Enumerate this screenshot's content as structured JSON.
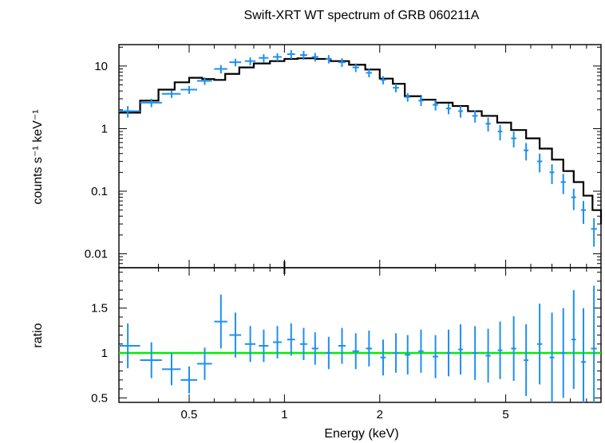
{
  "chart_data": [
    {
      "type": "scatter",
      "panel": "spectrum",
      "title": "Swift-XRT WT spectrum of GRB 060211A",
      "ylabel": "counts s⁻¹ keV⁻¹",
      "xscale": "log",
      "yscale": "log",
      "xlim": [
        0.3,
        10
      ],
      "ylim": [
        0.006,
        22
      ],
      "yticks": [
        0.01,
        0.1,
        1,
        10
      ],
      "ytick_labels": [
        "0.01",
        "0.1",
        "1",
        "10"
      ],
      "series": [
        {
          "role": "data",
          "color": "#1f8ff0",
          "x": [
            0.32,
            0.38,
            0.44,
            0.5,
            0.56,
            0.63,
            0.7,
            0.78,
            0.86,
            0.95,
            1.05,
            1.15,
            1.25,
            1.38,
            1.52,
            1.68,
            1.85,
            2.05,
            2.25,
            2.45,
            2.7,
            3.0,
            3.3,
            3.6,
            4.0,
            4.4,
            4.8,
            5.3,
            5.8,
            6.4,
            7.0,
            7.6,
            8.2,
            8.8,
            9.5
          ],
          "y": [
            1.9,
            2.6,
            3.6,
            4.2,
            5.8,
            9.0,
            11.5,
            12.0,
            13.5,
            14.0,
            15.5,
            15.0,
            14.0,
            13.0,
            11.5,
            9.5,
            7.8,
            6.0,
            4.5,
            3.2,
            2.8,
            2.4,
            2.1,
            1.9,
            1.6,
            1.2,
            0.9,
            0.7,
            0.45,
            0.3,
            0.2,
            0.14,
            0.08,
            0.05,
            0.025
          ],
          "xerr": [
            0.03,
            0.03,
            0.03,
            0.03,
            0.03,
            0.03,
            0.03,
            0.03,
            0.03,
            0.03,
            0.03,
            0.03,
            0.03,
            0.03,
            0.04,
            0.04,
            0.04,
            0.04,
            0.05,
            0.05,
            0.05,
            0.06,
            0.06,
            0.06,
            0.08,
            0.08,
            0.08,
            0.1,
            0.1,
            0.12,
            0.12,
            0.14,
            0.14,
            0.16,
            0.2
          ],
          "yerr": [
            0.4,
            0.4,
            0.5,
            0.6,
            0.8,
            1.4,
            1.6,
            1.7,
            2.0,
            2.0,
            2.5,
            2.4,
            2.2,
            2.0,
            1.8,
            1.5,
            1.2,
            0.9,
            0.7,
            0.5,
            0.5,
            0.45,
            0.4,
            0.4,
            0.35,
            0.3,
            0.25,
            0.2,
            0.14,
            0.1,
            0.07,
            0.05,
            0.03,
            0.02,
            0.012
          ]
        },
        {
          "role": "model",
          "color": "#000000",
          "x": [
            0.3,
            0.35,
            0.4,
            0.45,
            0.5,
            0.55,
            0.6,
            0.65,
            0.72,
            0.8,
            0.9,
            1.0,
            1.1,
            1.25,
            1.4,
            1.6,
            1.8,
            2.0,
            2.2,
            2.4,
            2.7,
            3.0,
            3.4,
            3.8,
            4.2,
            4.7,
            5.2,
            5.8,
            6.4,
            7.0,
            7.6,
            8.2,
            8.8,
            9.4,
            10.0
          ],
          "y": [
            1.8,
            2.8,
            4.2,
            5.5,
            6.5,
            6.2,
            6.0,
            7.5,
            9.5,
            11.0,
            12.0,
            13.0,
            13.3,
            13.0,
            12.0,
            10.5,
            8.8,
            6.3,
            5.2,
            3.3,
            2.9,
            2.6,
            2.3,
            1.9,
            1.6,
            1.25,
            0.95,
            0.7,
            0.48,
            0.32,
            0.21,
            0.14,
            0.085,
            0.05,
            0.03
          ]
        }
      ]
    },
    {
      "type": "scatter",
      "panel": "ratio",
      "xlabel": "Energy (keV)",
      "ylabel": "ratio",
      "xscale": "log",
      "xlim": [
        0.3,
        10
      ],
      "ylim": [
        0.45,
        1.95
      ],
      "yticks": [
        0.5,
        1,
        1.5
      ],
      "ytick_labels": [
        "0.5",
        "1",
        "1.5"
      ],
      "xticks": [
        0.5,
        1,
        2,
        5
      ],
      "xtick_labels": [
        "0.5",
        "1",
        "2",
        "5"
      ],
      "reference_line": {
        "y": 1,
        "color": "#00ee00"
      },
      "series": [
        {
          "role": "ratio",
          "color": "#1f8ff0",
          "x": [
            0.32,
            0.38,
            0.44,
            0.5,
            0.56,
            0.63,
            0.7,
            0.78,
            0.86,
            0.95,
            1.05,
            1.15,
            1.25,
            1.38,
            1.52,
            1.68,
            1.85,
            2.05,
            2.25,
            2.45,
            2.7,
            3.0,
            3.3,
            3.6,
            4.0,
            4.4,
            4.8,
            5.3,
            5.8,
            6.4,
            7.0,
            7.6,
            8.2,
            8.8,
            9.5
          ],
          "y": [
            1.08,
            0.92,
            0.82,
            0.7,
            0.88,
            1.35,
            1.2,
            1.1,
            1.08,
            1.12,
            1.15,
            1.1,
            1.05,
            1.0,
            1.08,
            1.02,
            1.05,
            0.95,
            1.0,
            0.98,
            1.02,
            0.96,
            1.0,
            1.04,
            1.0,
            0.97,
            1.03,
            1.05,
            0.92,
            1.1,
            0.95,
            1.0,
            1.15,
            0.9,
            1.05
          ],
          "xerr": [
            0.03,
            0.03,
            0.03,
            0.03,
            0.03,
            0.03,
            0.03,
            0.03,
            0.03,
            0.03,
            0.03,
            0.03,
            0.03,
            0.03,
            0.04,
            0.04,
            0.04,
            0.04,
            0.05,
            0.05,
            0.05,
            0.06,
            0.06,
            0.06,
            0.08,
            0.08,
            0.08,
            0.1,
            0.1,
            0.12,
            0.12,
            0.14,
            0.14,
            0.16,
            0.2
          ],
          "yerr": [
            0.25,
            0.2,
            0.18,
            0.15,
            0.18,
            0.3,
            0.25,
            0.2,
            0.18,
            0.18,
            0.18,
            0.18,
            0.18,
            0.18,
            0.2,
            0.2,
            0.2,
            0.2,
            0.22,
            0.22,
            0.24,
            0.24,
            0.26,
            0.28,
            0.3,
            0.3,
            0.32,
            0.36,
            0.4,
            0.45,
            0.5,
            0.5,
            0.55,
            0.6,
            0.7
          ]
        }
      ]
    }
  ]
}
